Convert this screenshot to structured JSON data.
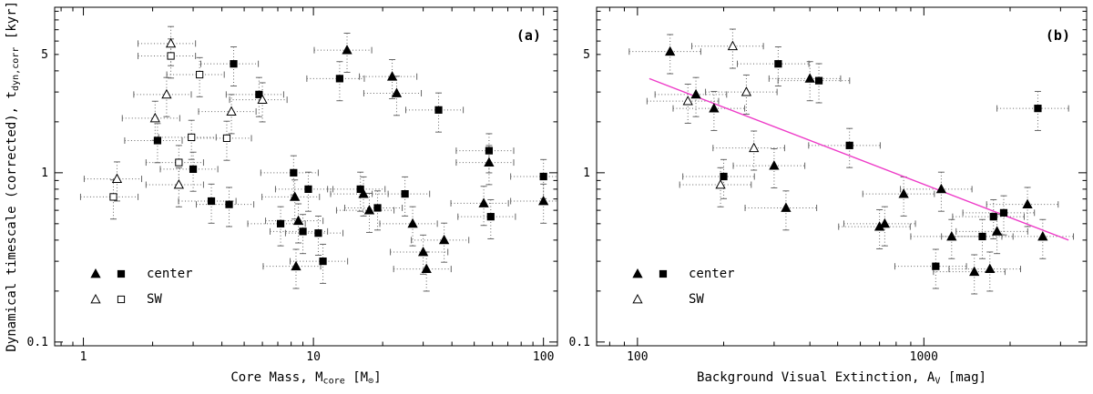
{
  "figure": {
    "background": "#ffffff",
    "y_axis_title_plain": "Dynamical timescale (corrected), t_dyn,corr [kyr]",
    "y_axis_title_segments": [
      {
        "text": "Dynamical timescale (corrected), t"
      },
      {
        "text": "dyn,corr",
        "sub": true
      },
      {
        "text": " [kyr]"
      }
    ],
    "colors": {
      "frame": "#000000",
      "tick": "#000000",
      "marker": "#000000",
      "errorbar": "#666666",
      "fit_line": "#ee3cc8",
      "background": "#ffffff"
    }
  },
  "chart_data": [
    {
      "type": "scatter",
      "panel_label": "(a)",
      "xscale": "log",
      "yscale": "log",
      "xlabel_plain": "Core Mass, M_core [M_sun]",
      "x_axis_title_segments": [
        {
          "text": "Core Mass, M"
        },
        {
          "text": "core",
          "sub": true
        },
        {
          "text": "  [M"
        },
        {
          "text": "⊙",
          "sub": true
        },
        {
          "text": "]"
        }
      ],
      "xlim": [
        0.75,
        115
      ],
      "ylim": [
        0.095,
        9.5
      ],
      "xtick_labels": [
        [
          1,
          "1"
        ],
        [
          10,
          "10"
        ],
        [
          100,
          "100"
        ]
      ],
      "ytick_labels": [
        [
          0.1,
          "0.1"
        ],
        [
          1,
          "1"
        ],
        [
          5,
          "5"
        ]
      ],
      "xerr_frac": 0.28,
      "yerr_frac": 0.26,
      "series": [
        {
          "name": "center",
          "marker": "triangle",
          "fill": "filled",
          "points": [
            [
              14,
              5.3
            ],
            [
              22,
              3.7
            ],
            [
              23,
              2.95
            ],
            [
              8.3,
              0.72
            ],
            [
              8.6,
              0.52
            ],
            [
              8.4,
              0.28
            ],
            [
              16.5,
              0.75
            ],
            [
              17.5,
              0.6
            ],
            [
              27,
              0.5
            ],
            [
              30,
              0.34
            ],
            [
              31,
              0.27
            ],
            [
              37,
              0.4
            ],
            [
              55,
              0.66
            ],
            [
              58,
              1.15
            ],
            [
              100,
              0.68
            ]
          ]
        },
        {
          "name": "center",
          "marker": "square",
          "fill": "filled",
          "points": [
            [
              2.1,
              1.55
            ],
            [
              3.0,
              1.05
            ],
            [
              3.6,
              0.68
            ],
            [
              4.3,
              0.65
            ],
            [
              4.5,
              4.4
            ],
            [
              5.8,
              2.9
            ],
            [
              7.2,
              0.5
            ],
            [
              8.2,
              1.0
            ],
            [
              9.0,
              0.45
            ],
            [
              9.5,
              0.8
            ],
            [
              10.5,
              0.44
            ],
            [
              11,
              0.3
            ],
            [
              13,
              3.6
            ],
            [
              16,
              0.8
            ],
            [
              19,
              0.62
            ],
            [
              25,
              0.75
            ],
            [
              35,
              2.35
            ],
            [
              58,
              1.35
            ],
            [
              59,
              0.55
            ],
            [
              100,
              0.95
            ]
          ]
        },
        {
          "name": "SW",
          "marker": "triangle",
          "fill": "open",
          "points": [
            [
              1.4,
              0.92
            ],
            [
              2.05,
              2.1
            ],
            [
              2.3,
              2.9
            ],
            [
              2.4,
              5.8
            ],
            [
              2.6,
              0.85
            ],
            [
              4.4,
              2.3
            ],
            [
              6.0,
              2.7
            ]
          ]
        },
        {
          "name": "SW",
          "marker": "square",
          "fill": "open",
          "points": [
            [
              1.35,
              0.72
            ],
            [
              2.4,
              4.9
            ],
            [
              2.6,
              1.15
            ],
            [
              2.95,
              1.62
            ],
            [
              3.2,
              3.8
            ],
            [
              4.2,
              1.6
            ]
          ]
        }
      ],
      "legend": [
        {
          "markers": [
            "triangle-filled",
            "square-filled"
          ],
          "label": "center"
        },
        {
          "markers": [
            "triangle-open",
            "square-open"
          ],
          "label": "SW"
        }
      ]
    },
    {
      "type": "scatter",
      "panel_label": "(b)",
      "xscale": "log",
      "yscale": "log",
      "xlabel_plain": "Background Visual Extinction, A_V [mag]",
      "x_axis_title_segments": [
        {
          "text": "Background Visual Extinction, A"
        },
        {
          "text": "V",
          "sub": true
        },
        {
          "text": " [mag]"
        }
      ],
      "xlim": [
        72,
        3700
      ],
      "ylim": [
        0.095,
        9.5
      ],
      "xtick_labels": [
        [
          100,
          "100"
        ],
        [
          1000,
          "1000"
        ]
      ],
      "ytick_labels": [
        [
          0.1,
          "0.1"
        ],
        [
          1,
          "1"
        ],
        [
          5,
          "5"
        ]
      ],
      "xerr_frac": 0.28,
      "yerr_frac": 0.26,
      "fit_line": {
        "x": [
          110,
          3200
        ],
        "y": [
          3.6,
          0.4
        ]
      },
      "series": [
        {
          "name": "center",
          "marker": "triangle",
          "fill": "filled",
          "points": [
            [
              130,
              5.2
            ],
            [
              160,
              2.9
            ],
            [
              185,
              2.4
            ],
            [
              300,
              1.1
            ],
            [
              330,
              0.62
            ],
            [
              400,
              3.6
            ],
            [
              700,
              0.48
            ],
            [
              730,
              0.5
            ],
            [
              850,
              0.75
            ],
            [
              1150,
              0.8
            ],
            [
              1250,
              0.42
            ],
            [
              1500,
              0.26
            ],
            [
              1700,
              0.27
            ],
            [
              1800,
              0.45
            ],
            [
              2300,
              0.65
            ],
            [
              2600,
              0.42
            ]
          ]
        },
        {
          "name": "center",
          "marker": "square",
          "fill": "filled",
          "points": [
            [
              200,
              0.95
            ],
            [
              310,
              4.4
            ],
            [
              430,
              3.5
            ],
            [
              550,
              1.45
            ],
            [
              1100,
              0.28
            ],
            [
              1600,
              0.42
            ],
            [
              1750,
              0.55
            ],
            [
              1900,
              0.58
            ],
            [
              2500,
              2.4
            ]
          ]
        },
        {
          "name": "SW",
          "marker": "triangle",
          "fill": "open",
          "points": [
            [
              150,
              2.65
            ],
            [
              195,
              0.85
            ],
            [
              215,
              5.6
            ],
            [
              240,
              3.0
            ],
            [
              255,
              1.4
            ]
          ]
        }
      ],
      "legend": [
        {
          "markers": [
            "triangle-filled",
            "square-filled"
          ],
          "label": "center"
        },
        {
          "markers": [
            "triangle-open"
          ],
          "label": "SW"
        }
      ]
    }
  ]
}
